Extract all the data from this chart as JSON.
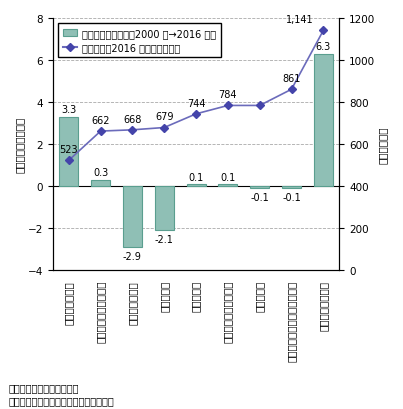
{
  "categories": [
    "サービス従事者",
    "輸送・運搬作業従事者",
    "生産工程従事者",
    "事務従事者",
    "販売従事者",
    "建設・掘削作業従事者",
    "修理技術者",
    "機器の設置、メンテナンス、",
    "専門的職業従事者"
  ],
  "bar_values": [
    3.3,
    0.3,
    -2.9,
    -2.1,
    0.1,
    0.1,
    -0.1,
    -0.1,
    6.3
  ],
  "bar_labels": [
    "3.3",
    "0.3",
    "-2.9",
    "-2.1",
    "0.1",
    "0.1",
    "-0.1",
    "-0.1",
    "6.3"
  ],
  "wage_values": [
    523,
    662,
    668,
    679,
    744,
    784,
    784,
    861,
    1141
  ],
  "wage_labels": [
    "523",
    "662",
    "668",
    "679",
    "744",
    "784",
    "",
    "861",
    "1,141"
  ],
  "bar_color": "#8fbfb5",
  "bar_edge_color": "#5a9e8f",
  "line_color": "#6b6bbb",
  "marker_color": "#4444aa",
  "ylim_left": [
    -4,
    8
  ],
  "ylim_right": [
    0,
    1200
  ],
  "ylabel_left": "（増減数、百万人）",
  "ylabel_right": "（ドル／週）",
  "legend_bar": "被雇用者数増減数（2000 年→2016 年）",
  "legend_line": "賃金水準（2016 年）（目盛右）",
  "note1": "備考：賃金水準は中央値。",
  "note2": "資料：米国労働省から経済産業省作成。",
  "grid_color": "#aaaaaa",
  "background_color": "#ffffff",
  "font_size_axis": 7.5,
  "font_size_label": 7,
  "font_size_note": 7
}
